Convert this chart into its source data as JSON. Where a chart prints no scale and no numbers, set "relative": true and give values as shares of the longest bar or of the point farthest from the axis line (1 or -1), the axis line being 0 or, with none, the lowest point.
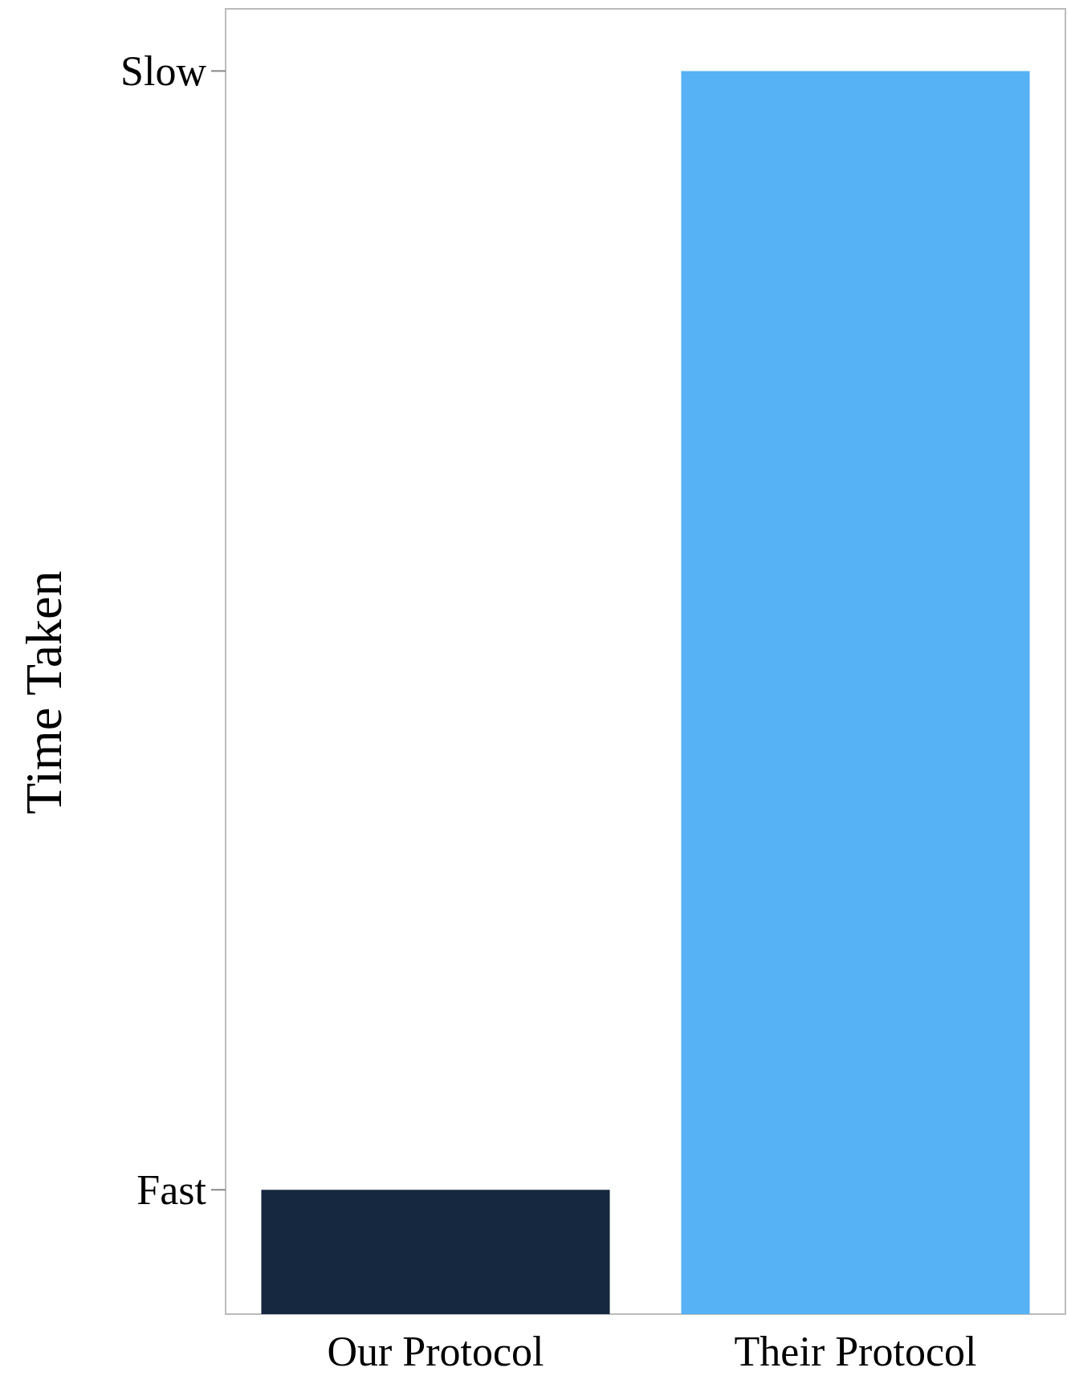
{
  "chart_data": {
    "type": "bar",
    "ylabel": "Time Taken",
    "relative": true,
    "categories": [
      "Our Protocol",
      "Their Protocol"
    ],
    "values": [
      0.1,
      1
    ],
    "colors": [
      "#16283f",
      "#56b1f5"
    ],
    "annotations": [
      "Fast",
      "Slow"
    ]
  }
}
